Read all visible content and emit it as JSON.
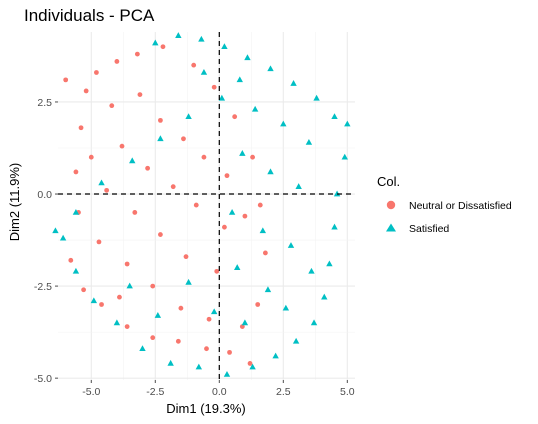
{
  "chart_data": {
    "type": "scatter",
    "title": "Individuals - PCA",
    "xlabel": "Dim1 (19.3%)",
    "ylabel": "Dim2 (11.9%)",
    "xlim": [
      -6.3,
      5.3
    ],
    "ylim": [
      -5.05,
      4.4
    ],
    "x_ticks": [
      -5.0,
      -2.5,
      0.0,
      2.5,
      5.0
    ],
    "x_tick_labels": [
      "-5.0",
      "-2.5",
      "0.0",
      "2.5",
      "5.0"
    ],
    "y_ticks": [
      -5.0,
      -2.5,
      0.0,
      2.5
    ],
    "y_tick_labels": [
      "-5.0",
      "-2.5",
      "0.0",
      "2.5"
    ],
    "grid": true,
    "reference_lines": {
      "x": 0,
      "y": 0,
      "style": "dashed"
    },
    "legend": {
      "title": "Col.",
      "position": "right",
      "entries": [
        {
          "label": "Neutral or Dissatisfied",
          "color": "#F8766D",
          "shape": "circle"
        },
        {
          "label": "Satisfied",
          "color": "#00BFC4",
          "shape": "triangle"
        }
      ]
    },
    "series": [
      {
        "name": "Neutral or Dissatisfied",
        "color": "#F8766D",
        "shape": "circle",
        "cluster": {
          "x_range": [
            -6.0,
            1.8
          ],
          "y_range": [
            -4.7,
            3.9
          ],
          "points": [
            [
              -6.0,
              3.1
            ],
            [
              -5.2,
              2.8
            ],
            [
              -4.8,
              3.3
            ],
            [
              -4.0,
              3.6
            ],
            [
              -3.2,
              3.8
            ],
            [
              -2.2,
              4.0
            ],
            [
              -1.0,
              3.5
            ],
            [
              -0.2,
              2.9
            ],
            [
              0.6,
              2.1
            ],
            [
              1.3,
              1.0
            ],
            [
              1.6,
              -0.3
            ],
            [
              1.8,
              -1.6
            ],
            [
              1.5,
              -3.0
            ],
            [
              1.2,
              -4.6
            ],
            [
              0.4,
              -4.3
            ],
            [
              -0.5,
              -4.2
            ],
            [
              -1.6,
              -4.0
            ],
            [
              -2.6,
              -3.9
            ],
            [
              -3.6,
              -3.6
            ],
            [
              -4.6,
              -3.0
            ],
            [
              -5.3,
              -2.6
            ],
            [
              -5.8,
              -1.8
            ],
            [
              -5.5,
              -0.5
            ],
            [
              -5.6,
              0.6
            ],
            [
              -5.4,
              1.8
            ],
            [
              -4.2,
              2.4
            ],
            [
              -3.1,
              2.7
            ],
            [
              -2.3,
              2.0
            ],
            [
              -1.4,
              1.5
            ],
            [
              -0.6,
              1.0
            ],
            [
              0.3,
              0.5
            ],
            [
              -3.8,
              1.3
            ],
            [
              -2.8,
              0.7
            ],
            [
              -1.8,
              0.2
            ],
            [
              -0.9,
              -0.3
            ],
            [
              0.2,
              -0.9
            ],
            [
              -4.4,
              0.1
            ],
            [
              -3.3,
              -0.5
            ],
            [
              -2.3,
              -1.1
            ],
            [
              -1.3,
              -1.7
            ],
            [
              -0.1,
              -2.1
            ],
            [
              -4.7,
              -1.3
            ],
            [
              -3.6,
              -1.9
            ],
            [
              -2.6,
              -2.5
            ],
            [
              -1.5,
              -3.1
            ],
            [
              -0.4,
              -3.4
            ],
            [
              0.9,
              -3.6
            ],
            [
              -5.0,
              1.0
            ],
            [
              -3.9,
              -2.8
            ],
            [
              1.0,
              -0.6
            ]
          ]
        }
      },
      {
        "name": "Satisfied",
        "color": "#00BFC4",
        "shape": "triangle",
        "cluster": {
          "x_range": [
            -6.4,
            5.0
          ],
          "y_range": [
            -5.0,
            4.3
          ],
          "points": [
            [
              -2.5,
              4.1
            ],
            [
              -1.6,
              4.3
            ],
            [
              -0.7,
              4.2
            ],
            [
              0.2,
              4.0
            ],
            [
              1.1,
              3.7
            ],
            [
              2.0,
              3.4
            ],
            [
              2.9,
              3.0
            ],
            [
              3.8,
              2.6
            ],
            [
              4.5,
              2.1
            ],
            [
              5.0,
              1.9
            ],
            [
              4.9,
              1.0
            ],
            [
              4.6,
              0.0
            ],
            [
              4.5,
              -0.9
            ],
            [
              4.3,
              -1.9
            ],
            [
              4.1,
              -2.8
            ],
            [
              3.7,
              -3.5
            ],
            [
              3.0,
              -4.0
            ],
            [
              2.2,
              -4.4
            ],
            [
              1.3,
              -4.7
            ],
            [
              0.3,
              -4.9
            ],
            [
              -0.8,
              -4.7
            ],
            [
              -1.9,
              -4.6
            ],
            [
              -3.0,
              -4.2
            ],
            [
              -4.0,
              -3.5
            ],
            [
              -4.9,
              -2.9
            ],
            [
              -5.6,
              -2.1
            ],
            [
              -6.1,
              -1.2
            ],
            [
              -6.4,
              -1.0
            ],
            [
              -5.6,
              -0.5
            ],
            [
              -4.6,
              0.3
            ],
            [
              -3.4,
              0.9
            ],
            [
              -2.3,
              1.5
            ],
            [
              -1.2,
              2.1
            ],
            [
              0.1,
              2.6
            ],
            [
              1.4,
              2.3
            ],
            [
              2.5,
              1.9
            ],
            [
              3.5,
              1.4
            ],
            [
              0.9,
              1.1
            ],
            [
              2.0,
              0.6
            ],
            [
              3.1,
              0.2
            ],
            [
              0.5,
              -0.5
            ],
            [
              1.7,
              -1.0
            ],
            [
              2.8,
              -1.4
            ],
            [
              3.6,
              -2.1
            ],
            [
              0.7,
              -2.0
            ],
            [
              1.9,
              -2.6
            ],
            [
              -0.2,
              -3.2
            ],
            [
              1.0,
              -3.5
            ],
            [
              2.6,
              -3.1
            ],
            [
              -1.2,
              -2.4
            ],
            [
              -2.4,
              -3.3
            ],
            [
              -3.5,
              -2.5
            ],
            [
              -0.6,
              3.3
            ],
            [
              0.8,
              3.1
            ]
          ]
        }
      }
    ]
  }
}
